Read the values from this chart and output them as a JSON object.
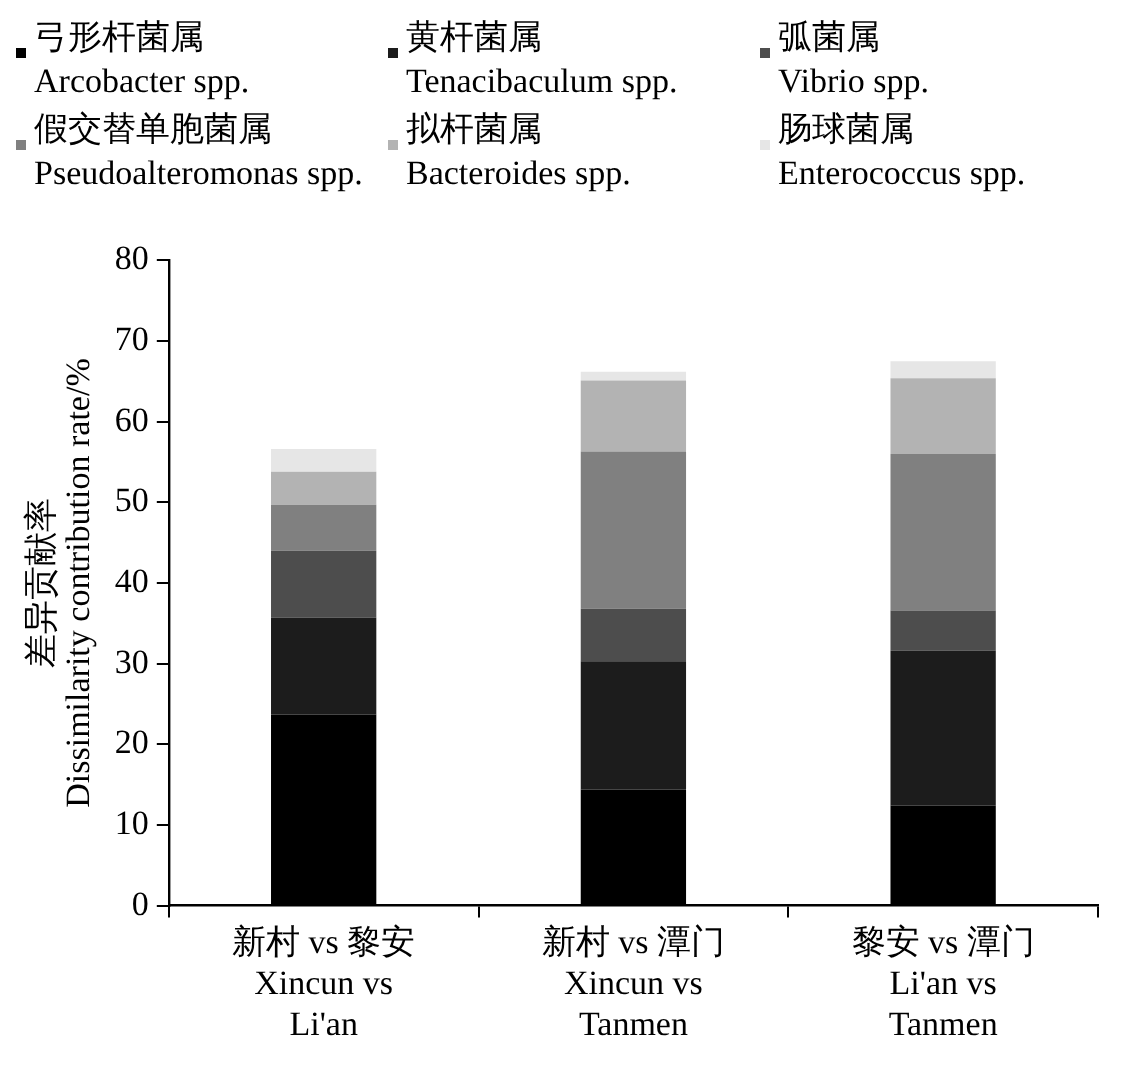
{
  "chart_data": {
    "type": "bar",
    "stacked": true,
    "legend": "top",
    "grid": false,
    "ylabel": "差异贡献率\nDissimilarity contribution rate/%",
    "categories": [
      "新村 vs 黎安\nXincun vs\nLi'an",
      "新村 vs 潭门\nXincun vs\nTanmen",
      "黎安 vs 潭门\nLi'an vs\nTanmen"
    ],
    "ylim": [
      0,
      80
    ],
    "yticks": [
      0,
      10,
      20,
      30,
      40,
      50,
      60,
      70,
      80
    ],
    "series": [
      {
        "name": "弓形杆菌属\nArcobacter spp.",
        "color": "#000000",
        "values": [
          23.7,
          14.4,
          12.4
        ]
      },
      {
        "name": "黄杆菌属\nTenacibaculum spp.",
        "color": "#1c1c1c",
        "values": [
          12.0,
          15.9,
          19.2
        ]
      },
      {
        "name": "弧菌属\nVibrio spp.",
        "color": "#4d4d4d",
        "values": [
          8.3,
          6.5,
          5.0
        ]
      },
      {
        "name": "假交替单胞菌属\nPseudoalteromonas spp.",
        "color": "#808080",
        "values": [
          5.7,
          19.5,
          19.4
        ]
      },
      {
        "name": "拟杆菌属\nBacteroides spp.",
        "color": "#b3b3b3",
        "values": [
          4.1,
          8.8,
          9.4
        ]
      },
      {
        "name": "肠球菌属\nEnterococcus spp.",
        "color": "#e6e6e6",
        "values": [
          2.8,
          1.1,
          2.1
        ]
      }
    ]
  }
}
